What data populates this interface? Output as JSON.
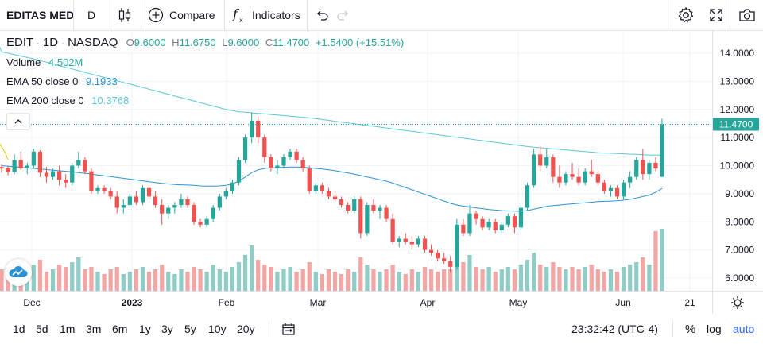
{
  "toolbar": {
    "symbol": "EDITAS MED",
    "interval": "D",
    "compare_label": "Compare",
    "indicators_label": "Indicators"
  },
  "legend": {
    "title": "EDIT",
    "sep1": "·",
    "interval": "1D",
    "sep2": "·",
    "exchange": "NASDAQ",
    "o_label": "O",
    "o": "9.6000",
    "h_label": "H",
    "h": "11.6750",
    "l_label": "L",
    "l": "9.6000",
    "c_label": "C",
    "c": "11.4700",
    "change": "+1.5400 (+15.51%)",
    "volume_label": "Volume",
    "volume": "4.502M",
    "ema50_label": "EMA 50 close 0",
    "ema50": "9.1933",
    "ema200_label": "EMA 200 close 0",
    "ema200": "10.3768"
  },
  "colors": {
    "up": "#26a69a",
    "down": "#ef5350",
    "up_vol": "#8fcdc6",
    "down_vol": "#f3a7a5",
    "ema50": "#2c94d6",
    "ema200": "#5bc8d8",
    "accent": "#2962ff"
  },
  "chart_data": {
    "type": "candlestick",
    "y_ticks": [
      "14.0000",
      "13.0000",
      "12.0000",
      "11.0000",
      "10.0000",
      "9.0000",
      "8.0000",
      "7.0000",
      "6.0000"
    ],
    "x_ticks": [
      "Dec",
      "2023",
      "Feb",
      "Mar",
      "Apr",
      "May",
      "Jun",
      "21"
    ],
    "last_price_label": "11.4700",
    "ylim": [
      5.6,
      14.6
    ],
    "candles": [
      [
        9.95,
        10.05,
        9.75,
        9.9
      ],
      [
        9.9,
        10.0,
        9.65,
        9.78
      ],
      [
        9.78,
        10.4,
        9.7,
        10.2
      ],
      [
        10.2,
        10.5,
        9.85,
        9.9
      ],
      [
        9.9,
        10.1,
        9.7,
        10.0
      ],
      [
        10.0,
        10.6,
        9.9,
        10.5
      ],
      [
        10.5,
        10.55,
        9.6,
        9.75
      ],
      [
        9.75,
        9.95,
        9.4,
        9.6
      ],
      [
        9.6,
        9.9,
        9.5,
        9.8
      ],
      [
        9.8,
        10.0,
        9.3,
        9.5
      ],
      [
        9.5,
        9.7,
        9.2,
        9.4
      ],
      [
        9.4,
        10.1,
        9.3,
        10.0
      ],
      [
        10.0,
        10.5,
        9.9,
        10.2
      ],
      [
        10.2,
        10.3,
        9.7,
        9.8
      ],
      [
        9.8,
        9.9,
        9.0,
        9.1
      ],
      [
        9.1,
        9.3,
        9.0,
        9.2
      ],
      [
        9.2,
        9.3,
        9.0,
        9.1
      ],
      [
        9.1,
        9.2,
        8.8,
        8.9
      ],
      [
        8.9,
        9.1,
        8.3,
        8.5
      ],
      [
        8.5,
        8.8,
        8.3,
        8.6
      ],
      [
        8.6,
        9.0,
        8.5,
        8.9
      ],
      [
        8.9,
        9.1,
        8.6,
        8.7
      ],
      [
        8.7,
        9.3,
        8.6,
        9.2
      ],
      [
        9.2,
        9.3,
        8.8,
        8.9
      ],
      [
        8.9,
        9.1,
        8.5,
        8.6
      ],
      [
        8.6,
        8.8,
        7.9,
        8.3
      ],
      [
        8.3,
        8.6,
        8.1,
        8.5
      ],
      [
        8.5,
        8.7,
        8.3,
        8.6
      ],
      [
        8.6,
        9.0,
        8.5,
        8.8
      ],
      [
        8.8,
        8.9,
        8.5,
        8.6
      ],
      [
        8.6,
        8.7,
        7.9,
        8.0
      ],
      [
        8.0,
        8.1,
        7.8,
        7.9
      ],
      [
        7.9,
        8.2,
        7.8,
        8.1
      ],
      [
        8.1,
        8.6,
        8.0,
        8.5
      ],
      [
        8.5,
        9.0,
        8.4,
        8.9
      ],
      [
        8.9,
        9.2,
        8.8,
        9.1
      ],
      [
        9.1,
        9.5,
        9.0,
        9.4
      ],
      [
        9.4,
        10.3,
        9.3,
        10.2
      ],
      [
        10.2,
        11.1,
        10.1,
        11.0
      ],
      [
        11.0,
        11.9,
        10.8,
        11.6
      ],
      [
        11.6,
        11.75,
        10.8,
        11.0
      ],
      [
        11.0,
        11.1,
        10.1,
        10.3
      ],
      [
        10.3,
        10.4,
        9.8,
        9.9
      ],
      [
        9.9,
        10.2,
        9.7,
        10.0
      ],
      [
        10.0,
        10.4,
        9.9,
        10.3
      ],
      [
        10.3,
        10.6,
        10.2,
        10.5
      ],
      [
        10.5,
        10.6,
        10.1,
        10.2
      ],
      [
        10.2,
        10.3,
        9.8,
        9.9
      ],
      [
        9.9,
        10.0,
        9.0,
        9.1
      ],
      [
        9.1,
        9.4,
        9.0,
        9.3
      ],
      [
        9.3,
        9.4,
        9.0,
        9.1
      ],
      [
        9.1,
        9.2,
        8.8,
        8.9
      ],
      [
        8.9,
        9.1,
        8.7,
        8.8
      ],
      [
        8.8,
        8.9,
        8.5,
        8.6
      ],
      [
        8.6,
        8.7,
        8.3,
        8.4
      ],
      [
        8.4,
        8.9,
        8.3,
        8.8
      ],
      [
        8.8,
        8.9,
        7.4,
        7.6
      ],
      [
        7.6,
        8.7,
        7.5,
        8.6
      ],
      [
        8.6,
        8.8,
        8.3,
        8.4
      ],
      [
        8.4,
        8.6,
        8.1,
        8.5
      ],
      [
        8.5,
        8.6,
        8.0,
        8.1
      ],
      [
        8.1,
        8.3,
        7.2,
        7.3
      ],
      [
        7.3,
        7.5,
        7.1,
        7.4
      ],
      [
        7.4,
        7.6,
        7.2,
        7.3
      ],
      [
        7.3,
        7.5,
        7.0,
        7.2
      ],
      [
        7.2,
        7.5,
        7.1,
        7.4
      ],
      [
        7.4,
        7.5,
        6.9,
        7.0
      ],
      [
        7.0,
        7.2,
        6.8,
        6.9
      ],
      [
        6.9,
        7.0,
        6.6,
        6.7
      ],
      [
        6.7,
        6.9,
        6.5,
        6.6
      ],
      [
        6.6,
        6.8,
        6.2,
        6.4
      ],
      [
        6.4,
        8.1,
        6.3,
        7.9
      ],
      [
        7.9,
        8.1,
        7.5,
        7.6
      ],
      [
        7.6,
        8.6,
        7.5,
        8.3
      ],
      [
        8.3,
        8.4,
        7.9,
        8.1
      ],
      [
        8.1,
        8.2,
        7.7,
        7.8
      ],
      [
        7.8,
        8.1,
        7.7,
        8.0
      ],
      [
        8.0,
        8.1,
        7.6,
        7.7
      ],
      [
        7.7,
        8.0,
        7.6,
        7.9
      ],
      [
        7.9,
        8.3,
        7.8,
        8.2
      ],
      [
        8.2,
        8.3,
        7.6,
        7.8
      ],
      [
        7.8,
        8.6,
        7.7,
        8.5
      ],
      [
        8.5,
        9.4,
        8.4,
        9.3
      ],
      [
        9.3,
        10.6,
        9.2,
        10.4
      ],
      [
        10.4,
        10.7,
        9.8,
        10.0
      ],
      [
        10.0,
        10.6,
        9.9,
        10.3
      ],
      [
        10.3,
        10.4,
        9.4,
        9.6
      ],
      [
        9.6,
        10.0,
        9.2,
        9.4
      ],
      [
        9.4,
        9.8,
        9.3,
        9.7
      ],
      [
        9.7,
        10.1,
        9.5,
        9.6
      ],
      [
        9.6,
        9.9,
        9.3,
        9.4
      ],
      [
        9.4,
        9.9,
        9.3,
        9.8
      ],
      [
        9.8,
        10.2,
        9.6,
        9.7
      ],
      [
        9.7,
        9.8,
        9.3,
        9.4
      ],
      [
        9.4,
        9.5,
        9.0,
        9.1
      ],
      [
        9.1,
        9.3,
        8.9,
        9.2
      ],
      [
        9.2,
        9.3,
        8.8,
        8.9
      ],
      [
        8.9,
        9.5,
        8.8,
        9.4
      ],
      [
        9.4,
        9.8,
        9.2,
        9.6
      ],
      [
        9.6,
        10.3,
        9.5,
        10.2
      ],
      [
        10.2,
        10.6,
        9.5,
        9.7
      ],
      [
        9.7,
        10.2,
        9.5,
        10.1
      ],
      [
        10.1,
        10.3,
        9.8,
        9.9
      ],
      [
        9.6,
        11.675,
        9.6,
        11.47
      ]
    ],
    "volume": [
      0.45,
      0.5,
      0.55,
      0.6,
      0.5,
      0.55,
      0.65,
      0.4,
      0.45,
      0.55,
      0.5,
      0.6,
      0.7,
      0.45,
      0.5,
      0.4,
      0.35,
      0.45,
      0.5,
      0.35,
      0.4,
      0.45,
      0.5,
      0.4,
      0.45,
      0.55,
      0.4,
      0.35,
      0.45,
      0.4,
      0.5,
      0.45,
      0.4,
      0.55,
      0.45,
      0.4,
      0.5,
      0.6,
      0.75,
      0.95,
      0.65,
      0.55,
      0.5,
      0.4,
      0.45,
      0.5,
      0.4,
      0.45,
      0.6,
      0.4,
      0.35,
      0.45,
      0.4,
      0.35,
      0.45,
      0.4,
      0.7,
      0.55,
      0.45,
      0.4,
      0.45,
      0.55,
      0.4,
      0.35,
      0.45,
      0.4,
      0.5,
      0.45,
      0.4,
      0.45,
      0.45,
      1.0,
      0.6,
      0.75,
      0.5,
      0.45,
      0.5,
      0.4,
      0.45,
      0.5,
      0.45,
      0.55,
      0.65,
      0.8,
      0.55,
      0.5,
      0.6,
      0.5,
      0.45,
      0.5,
      0.45,
      0.5,
      0.55,
      0.45,
      0.4,
      0.45,
      0.4,
      0.5,
      0.55,
      0.6,
      0.7,
      0.55,
      1.25,
      1.3
    ],
    "ema50": [
      10.0,
      9.98,
      9.96,
      9.94,
      9.92,
      9.9,
      9.88,
      9.86,
      9.84,
      9.82,
      9.8,
      9.78,
      9.75,
      9.73,
      9.7,
      9.67,
      9.64,
      9.61,
      9.58,
      9.55,
      9.52,
      9.49,
      9.46,
      9.43,
      9.4,
      9.37,
      9.35,
      9.33,
      9.32,
      9.31,
      9.3,
      9.28,
      9.27,
      9.27,
      9.28,
      9.3,
      9.35,
      9.45,
      9.6,
      9.75,
      9.85,
      9.9,
      9.92,
      9.93,
      9.94,
      9.95,
      9.95,
      9.94,
      9.92,
      9.9,
      9.88,
      9.85,
      9.82,
      9.78,
      9.74,
      9.7,
      9.65,
      9.6,
      9.55,
      9.5,
      9.45,
      9.38,
      9.3,
      9.22,
      9.14,
      9.06,
      8.98,
      8.9,
      8.82,
      8.74,
      8.66,
      8.6,
      8.56,
      8.53,
      8.5,
      8.47,
      8.44,
      8.42,
      8.4,
      8.39,
      8.38,
      8.38,
      8.4,
      8.45,
      8.5,
      8.55,
      8.58,
      8.6,
      8.62,
      8.64,
      8.66,
      8.68,
      8.7,
      8.72,
      8.73,
      8.74,
      8.75,
      8.77,
      8.8,
      8.85,
      8.9,
      8.95,
      9.05,
      9.19
    ],
    "ema200": [
      14.05,
      14.0,
      13.95,
      13.9,
      13.85,
      13.8,
      13.74,
      13.68,
      13.62,
      13.56,
      13.5,
      13.44,
      13.38,
      13.32,
      13.26,
      13.2,
      13.14,
      13.08,
      13.02,
      12.96,
      12.9,
      12.84,
      12.78,
      12.72,
      12.66,
      12.6,
      12.54,
      12.48,
      12.42,
      12.36,
      12.3,
      12.24,
      12.18,
      12.12,
      12.06,
      12.0,
      11.96,
      11.92,
      11.9,
      11.88,
      11.86,
      11.84,
      11.82,
      11.8,
      11.78,
      11.76,
      11.74,
      11.72,
      11.7,
      11.67,
      11.64,
      11.61,
      11.58,
      11.55,
      11.52,
      11.49,
      11.46,
      11.43,
      11.4,
      11.37,
      11.34,
      11.31,
      11.28,
      11.25,
      11.22,
      11.19,
      11.16,
      11.13,
      11.1,
      11.07,
      11.04,
      11.01,
      10.98,
      10.95,
      10.92,
      10.89,
      10.86,
      10.83,
      10.8,
      10.77,
      10.74,
      10.71,
      10.68,
      10.66,
      10.64,
      10.62,
      10.6,
      10.58,
      10.56,
      10.54,
      10.52,
      10.5,
      10.48,
      10.46,
      10.45,
      10.44,
      10.43,
      10.42,
      10.41,
      10.4,
      10.39,
      10.38,
      10.38,
      10.3768
    ]
  },
  "footer": {
    "ranges": [
      "1d",
      "5d",
      "1m",
      "3m",
      "6m",
      "1y",
      "3y",
      "5y",
      "10y",
      "20y"
    ],
    "clock": "23:32:42 (UTC-4)",
    "percent": "%",
    "log": "log",
    "auto": "auto"
  }
}
